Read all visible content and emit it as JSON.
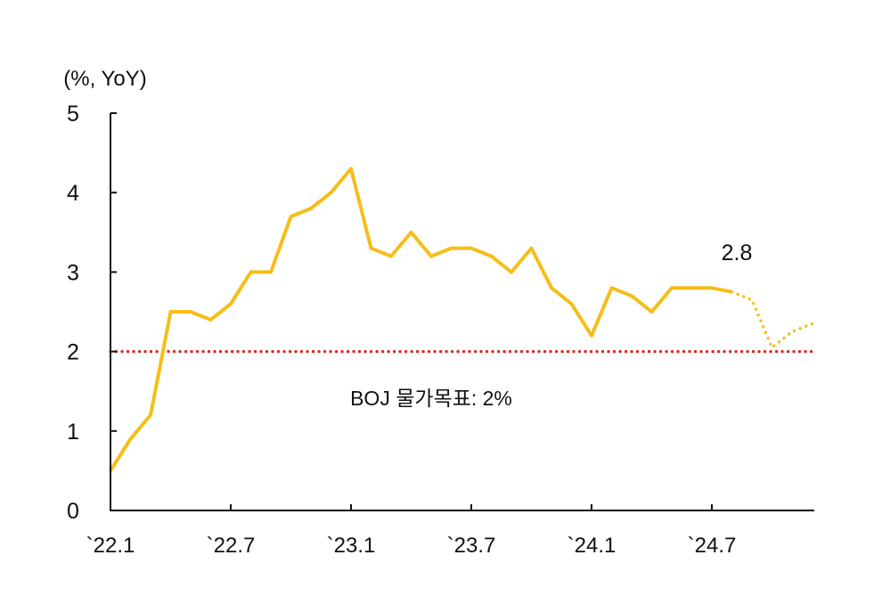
{
  "chart_data": {
    "type": "line",
    "ylabel": "(%, YoY)",
    "ylim": [
      0,
      5
    ],
    "yticks": [
      0,
      1,
      2,
      3,
      4,
      5
    ],
    "xtick_labels": [
      "`22.1",
      "`22.7",
      "`23.1",
      "`23.7",
      "`24.1",
      "`24.7"
    ],
    "grid": false,
    "series": [
      {
        "style": "solid",
        "color": "#F5BE19",
        "x": [
          "`22.1",
          "`22.2",
          "`22.3",
          "`22.4",
          "`22.5",
          "`22.6",
          "`22.7",
          "`22.8",
          "`22.9",
          "`22.10",
          "`22.11",
          "`22.12",
          "`23.1",
          "`23.2",
          "`23.3",
          "`23.4",
          "`23.5",
          "`23.6",
          "`23.7",
          "`23.8",
          "`23.9",
          "`23.10",
          "`23.11",
          "`23.12",
          "`24.1",
          "`24.2",
          "`24.3",
          "`24.4",
          "`24.5",
          "`24.6",
          "`24.7",
          "`24.8"
        ],
        "values": [
          0.5,
          0.9,
          1.2,
          2.5,
          2.5,
          2.4,
          2.6,
          3.0,
          3.0,
          3.7,
          3.8,
          4.0,
          4.3,
          3.3,
          3.2,
          3.5,
          3.2,
          3.3,
          3.3,
          3.2,
          3.0,
          3.3,
          2.8,
          2.6,
          2.2,
          2.8,
          2.7,
          2.5,
          2.8,
          2.8,
          2.8,
          2.75
        ]
      },
      {
        "style": "dotted",
        "color": "#F5BE19",
        "x": [
          "`24.8",
          "`24.9",
          "`24.10",
          "`24.11",
          "`24.12"
        ],
        "values": [
          2.75,
          2.65,
          2.05,
          2.25,
          2.35
        ]
      }
    ],
    "reference_line": {
      "value": 2,
      "color": "#E0201B",
      "style": "dotted",
      "label": "BOJ 물가목표: 2%"
    },
    "annotations": [
      {
        "text": "2.8",
        "x": "`24.7",
        "y": 2.8
      }
    ]
  }
}
